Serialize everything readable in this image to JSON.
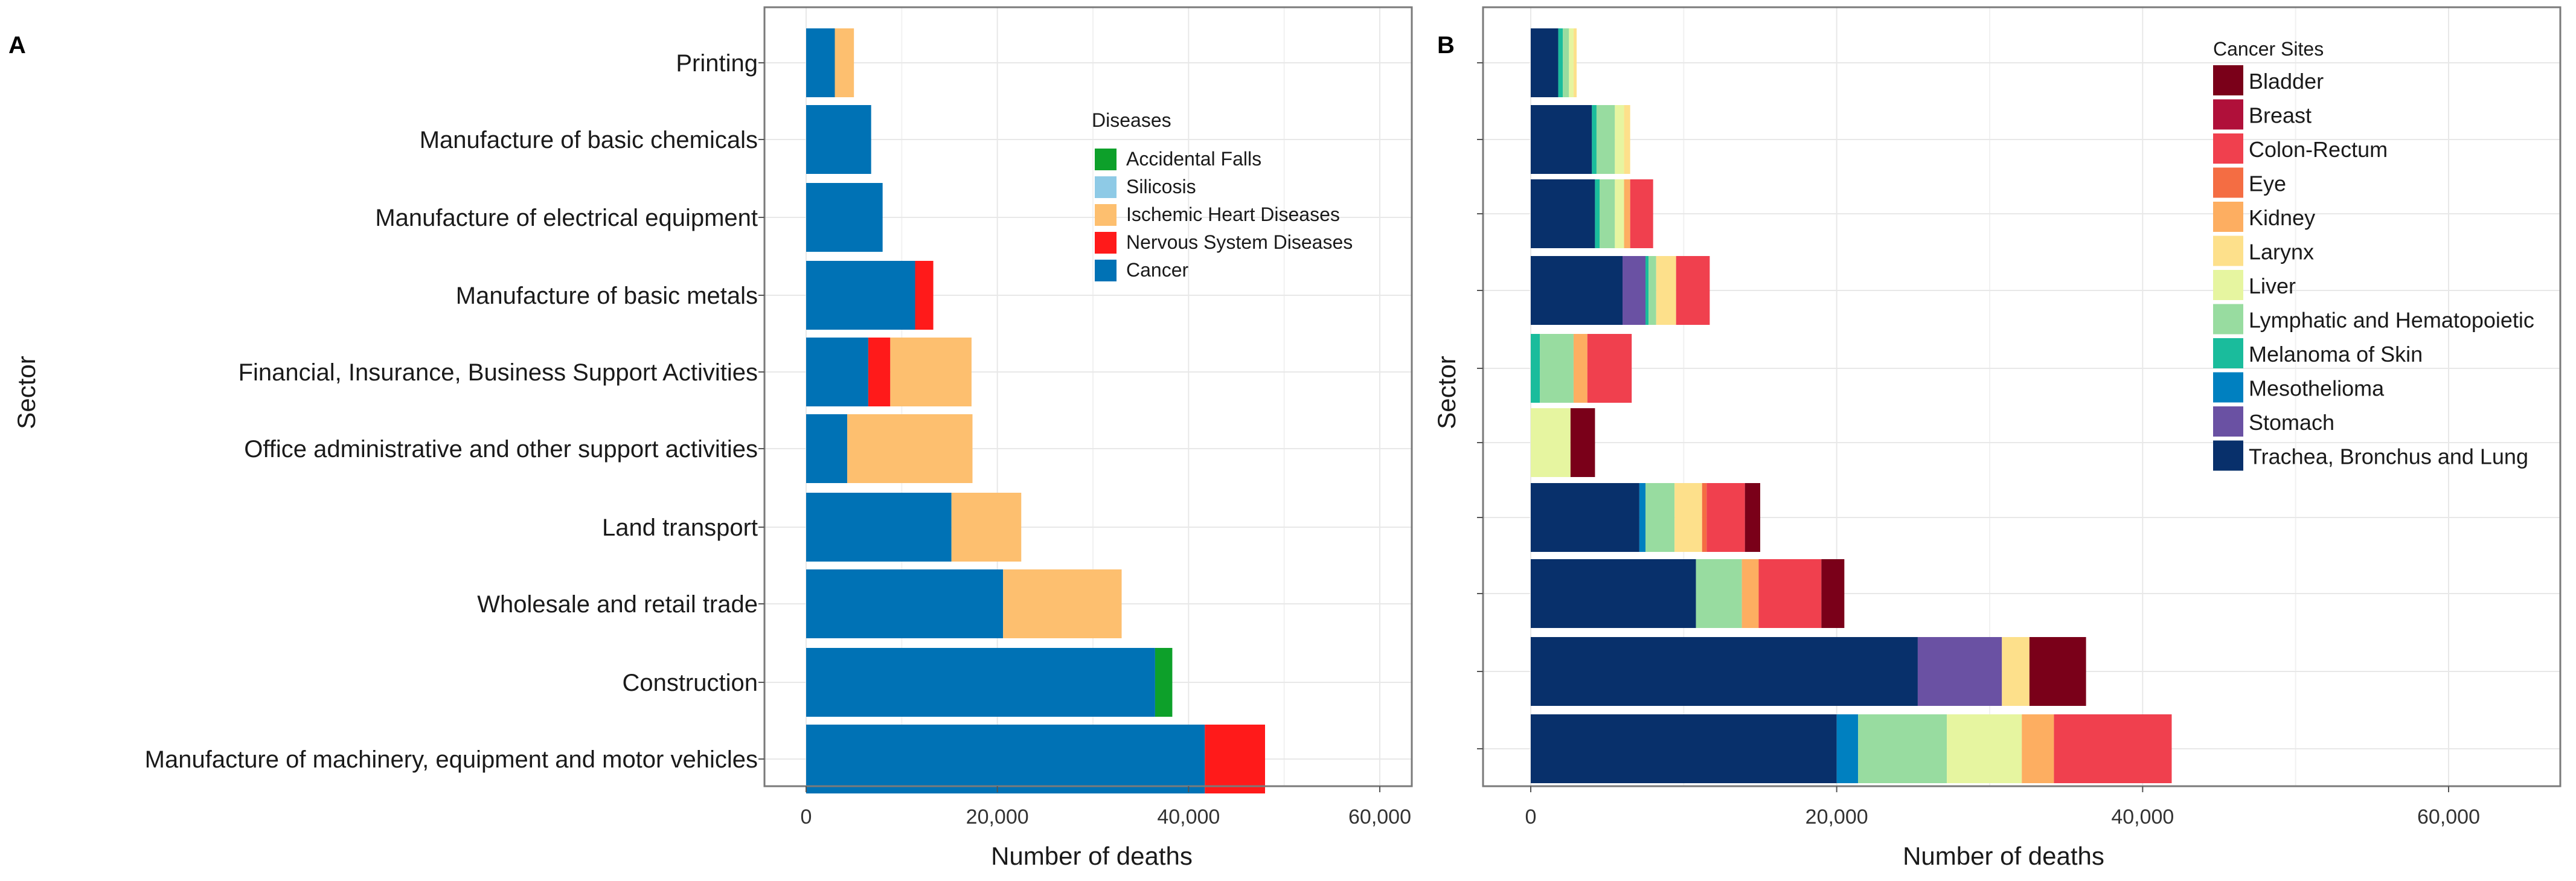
{
  "chart_data": [
    {
      "panel": "A",
      "type": "bar",
      "orientation": "horizontal",
      "stacked": true,
      "xlabel": "Number of deaths",
      "ylabel": "Sector",
      "xlim": [
        0,
        60000
      ],
      "xticks": [
        "0",
        "20,000",
        "40,000",
        "60,000"
      ],
      "legend_title": "Diseases",
      "legend_position": "top-right",
      "categories": [
        "Printing",
        "Manufacture of basic chemicals",
        "Manufacture of electrical equipment",
        "Manufacture of basic metals",
        "Financial, Insurance, Business Support Activities",
        "Office administrative and other support activities",
        "Land transport",
        "Wholesale and retail trade",
        "Construction",
        "Manufacture of machinery, equipment and motor vehicles"
      ],
      "legend": [
        "Accidental Falls",
        "Silicosis",
        "Ischemic Heart Diseases",
        "Nervous System Diseases",
        "Cancer"
      ],
      "stack_order": [
        "Cancer",
        "Accidental Falls",
        "Silicosis",
        "Nervous System Diseases",
        "Ischemic Heart Diseases"
      ],
      "series": [
        {
          "name": "Cancer",
          "color": "#0072B5",
          "values": [
            3000,
            6800,
            8000,
            11400,
            6500,
            4300,
            15200,
            20600,
            36500,
            41700
          ]
        },
        {
          "name": "Accidental Falls",
          "color": "#0DA02A",
          "values": [
            0,
            0,
            0,
            0,
            0,
            0,
            0,
            0,
            1800,
            0
          ]
        },
        {
          "name": "Silicosis",
          "color": "#8ECAE6",
          "values": [
            0,
            0,
            0,
            0,
            0,
            0,
            0,
            0,
            0,
            0
          ]
        },
        {
          "name": "Nervous System Diseases",
          "color": "#FF1A1A",
          "values": [
            0,
            0,
            0,
            1900,
            2300,
            0,
            0,
            0,
            0,
            6300
          ]
        },
        {
          "name": "Ischemic Heart Diseases",
          "color": "#FDBF6F",
          "values": [
            2000,
            0,
            0,
            0,
            8500,
            13100,
            7300,
            12400,
            0,
            0
          ]
        }
      ]
    },
    {
      "panel": "B",
      "type": "bar",
      "orientation": "horizontal",
      "stacked": true,
      "xlabel": "Number of deaths",
      "ylabel": "Sector",
      "xlim": [
        0,
        60000
      ],
      "xticks": [
        "0",
        "20,000",
        "40,000",
        "60,000"
      ],
      "legend_title": "Cancer Sites",
      "legend_position": "top-right",
      "categories": [
        "Printing",
        "Manufacture of basic chemicals",
        "Manufacture of electrical equipment",
        "Manufacture of basic metals",
        "Financial, Insurance, Business Support Activities",
        "Office administrative and other support activities",
        "Land transport",
        "Wholesale and retail trade",
        "Construction",
        "Manufacture of machinery, equipment and motor vehicles"
      ],
      "legend": [
        "Bladder",
        "Breast",
        "Colon-Rectum",
        "Eye",
        "Kidney",
        "Larynx",
        "Liver",
        "Lymphatic and Hematopoietic",
        "Melanoma of Skin",
        "Mesothelioma",
        "Stomach",
        "Trachea, Bronchus and Lung"
      ],
      "stack_order": [
        "Trachea, Bronchus and Lung",
        "Stomach",
        "Mesothelioma",
        "Melanoma of Skin",
        "Lymphatic and Hematopoietic",
        "Liver",
        "Larynx",
        "Kidney",
        "Eye",
        "Colon-Rectum",
        "Breast",
        "Bladder"
      ],
      "series": [
        {
          "name": "Trachea, Bronchus and Lung",
          "color": "#08306B",
          "values": [
            1800,
            4000,
            4200,
            6000,
            0,
            0,
            7100,
            10800,
            25300,
            20000
          ]
        },
        {
          "name": "Stomach",
          "color": "#6A51A3",
          "values": [
            0,
            0,
            0,
            1500,
            0,
            0,
            0,
            0,
            5500,
            0
          ]
        },
        {
          "name": "Mesothelioma",
          "color": "#0080C0",
          "values": [
            0,
            0,
            0,
            0,
            0,
            0,
            400,
            0,
            0,
            1400
          ]
        },
        {
          "name": "Melanoma of Skin",
          "color": "#1ABC9C",
          "values": [
            300,
            300,
            300,
            200,
            600,
            0,
            0,
            0,
            0,
            0
          ]
        },
        {
          "name": "Lymphatic and Hematopoietic",
          "color": "#98DCA0",
          "values": [
            400,
            1200,
            1000,
            500,
            2200,
            0,
            1900,
            3000,
            0,
            5800
          ]
        },
        {
          "name": "Liver",
          "color": "#E6F5A0",
          "values": [
            300,
            600,
            600,
            0,
            0,
            2600,
            0,
            0,
            0,
            4900
          ]
        },
        {
          "name": "Larynx",
          "color": "#FDE08B",
          "values": [
            200,
            400,
            0,
            1300,
            0,
            0,
            1800,
            0,
            1800,
            0
          ]
        },
        {
          "name": "Kidney",
          "color": "#FDAE61",
          "values": [
            0,
            0,
            400,
            0,
            900,
            0,
            0,
            1100,
            0,
            2100
          ]
        },
        {
          "name": "Eye",
          "color": "#F46D43",
          "values": [
            0,
            0,
            0,
            0,
            0,
            0,
            300,
            0,
            0,
            0
          ]
        },
        {
          "name": "Colon-Rectum",
          "color": "#F0404E",
          "values": [
            0,
            0,
            1500,
            2200,
            2900,
            0,
            2500,
            4100,
            0,
            7700
          ]
        },
        {
          "name": "Breast",
          "color": "#B0103A",
          "values": [
            0,
            0,
            0,
            0,
            0,
            0,
            0,
            0,
            0,
            0
          ]
        },
        {
          "name": "Bladder",
          "color": "#7A0019",
          "values": [
            0,
            0,
            0,
            0,
            0,
            1600,
            1000,
            1500,
            3700,
            0
          ]
        }
      ]
    }
  ],
  "panels": {
    "a": {
      "letter": "A"
    },
    "b": {
      "letter": "B"
    }
  }
}
